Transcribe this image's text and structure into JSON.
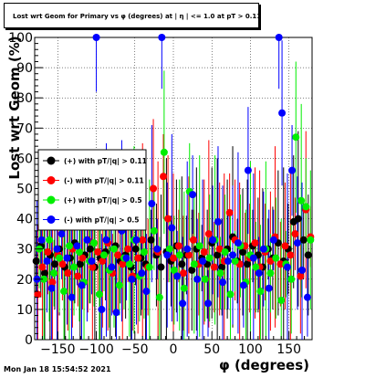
{
  "chart_data": {
    "type": "scatter",
    "title": "Lost wrt Geom for Primary vs φ (degrees) at | η | <= 1.0 at pT > 0.11",
    "xlabel": "φ (degrees)",
    "ylabel": "Lost wrt Geom (%)",
    "xlim": [
      -180,
      180
    ],
    "ylim": [
      0,
      100
    ],
    "xticks": [
      -150,
      -100,
      -50,
      0,
      50,
      100,
      150
    ],
    "yticks": [
      0,
      10,
      20,
      30,
      40,
      50,
      60,
      70,
      80,
      90,
      100
    ],
    "grid": true,
    "legend_position": "left-middle",
    "legend": [
      {
        "label": "(+) with pT/|q| > 0.11",
        "color": "#000000"
      },
      {
        "label": "(-) with pT/|q| > 0.11",
        "color": "#ff0000"
      },
      {
        "label": "(+) with pT/|q| > 0.5",
        "color": "#00ee00"
      },
      {
        "label": "(-) with pT/|q| > 0.5",
        "color": "#0000ff"
      }
    ],
    "series": [
      {
        "name": "(+) with pT/|q| > 0.11",
        "color": "#000000",
        "points": [
          [
            -178,
            26
          ],
          [
            -172,
            31
          ],
          [
            -167,
            22
          ],
          [
            -160,
            28
          ],
          [
            -154,
            25
          ],
          [
            -148,
            30
          ],
          [
            -141,
            24
          ],
          [
            -134,
            27
          ],
          [
            -128,
            32
          ],
          [
            -121,
            25
          ],
          [
            -115,
            28
          ],
          [
            -108,
            30
          ],
          [
            -102,
            24
          ],
          [
            -95,
            27
          ],
          [
            -88,
            29
          ],
          [
            -82,
            23
          ],
          [
            -75,
            31
          ],
          [
            -69,
            26
          ],
          [
            -62,
            28
          ],
          [
            -55,
            24
          ],
          [
            -49,
            30
          ],
          [
            -42,
            27
          ],
          [
            -36,
            25
          ],
          [
            -29,
            33
          ],
          [
            -22,
            28
          ],
          [
            -16,
            24
          ],
          [
            -9,
            29
          ],
          [
            -3,
            26
          ],
          [
            4,
            31
          ],
          [
            11,
            25
          ],
          [
            17,
            28
          ],
          [
            24,
            23
          ],
          [
            30,
            30
          ],
          [
            37,
            27
          ],
          [
            44,
            25
          ],
          [
            50,
            32
          ],
          [
            57,
            28
          ],
          [
            63,
            24
          ],
          [
            70,
            30
          ],
          [
            77,
            34
          ],
          [
            83,
            26
          ],
          [
            90,
            29
          ],
          [
            96,
            25
          ],
          [
            103,
            31
          ],
          [
            110,
            28
          ],
          [
            116,
            24
          ],
          [
            123,
            30
          ],
          [
            129,
            27
          ],
          [
            136,
            32
          ],
          [
            143,
            26
          ],
          [
            149,
            30
          ],
          [
            156,
            39
          ],
          [
            162,
            40
          ],
          [
            169,
            33
          ],
          [
            175,
            28
          ]
        ]
      },
      {
        "name": "(-) with pT/|q| > 0.11",
        "color": "#ff0000",
        "points": [
          [
            -176,
            15
          ],
          [
            -170,
            24
          ],
          [
            -163,
            29
          ],
          [
            -157,
            19
          ],
          [
            -150,
            28
          ],
          [
            -144,
            25
          ],
          [
            -137,
            22
          ],
          [
            -131,
            30
          ],
          [
            -124,
            21
          ],
          [
            -118,
            27
          ],
          [
            -111,
            33
          ],
          [
            -105,
            24
          ],
          [
            -98,
            29
          ],
          [
            -92,
            26
          ],
          [
            -85,
            32
          ],
          [
            -79,
            22
          ],
          [
            -72,
            28
          ],
          [
            -66,
            25
          ],
          [
            -59,
            30
          ],
          [
            -53,
            21
          ],
          [
            -46,
            27
          ],
          [
            -40,
            33
          ],
          [
            -33,
            24
          ],
          [
            -26,
            50
          ],
          [
            -20,
            29
          ],
          [
            -13,
            54
          ],
          [
            -7,
            40
          ],
          [
            0,
            27
          ],
          [
            7,
            31
          ],
          [
            13,
            22
          ],
          [
            20,
            28
          ],
          [
            26,
            33
          ],
          [
            33,
            25
          ],
          [
            40,
            29
          ],
          [
            46,
            35
          ],
          [
            53,
            24
          ],
          [
            60,
            30
          ],
          [
            66,
            26
          ],
          [
            73,
            42
          ],
          [
            80,
            33
          ],
          [
            86,
            25
          ],
          [
            93,
            31
          ],
          [
            99,
            27
          ],
          [
            106,
            32
          ],
          [
            112,
            24
          ],
          [
            119,
            29
          ],
          [
            126,
            26
          ],
          [
            132,
            34
          ],
          [
            139,
            25
          ],
          [
            145,
            31
          ],
          [
            152,
            28
          ],
          [
            158,
            35
          ],
          [
            165,
            21
          ],
          [
            172,
            43
          ],
          [
            178,
            34
          ]
        ]
      },
      {
        "name": "(+) with pT/|q| > 0.5",
        "color": "#00ee00",
        "points": [
          [
            -174,
            30
          ],
          [
            -168,
            20
          ],
          [
            -161,
            33
          ],
          [
            -155,
            22
          ],
          [
            -148,
            27
          ],
          [
            -142,
            16
          ],
          [
            -135,
            31
          ],
          [
            -129,
            24
          ],
          [
            -122,
            29
          ],
          [
            -116,
            19
          ],
          [
            -109,
            26
          ],
          [
            -103,
            32
          ],
          [
            -96,
            15
          ],
          [
            -90,
            28
          ],
          [
            -83,
            23
          ],
          [
            -77,
            30
          ],
          [
            -70,
            18
          ],
          [
            -64,
            27
          ],
          [
            -57,
            25
          ],
          [
            -51,
            33
          ],
          [
            -44,
            21
          ],
          [
            -38,
            29
          ],
          [
            -31,
            24
          ],
          [
            -25,
            36
          ],
          [
            -18,
            14
          ],
          [
            -12,
            62
          ],
          [
            -5,
            30
          ],
          [
            1,
            23
          ],
          [
            8,
            28
          ],
          [
            14,
            17
          ],
          [
            21,
            49
          ],
          [
            27,
            25
          ],
          [
            34,
            31
          ],
          [
            41,
            20
          ],
          [
            47,
            27
          ],
          [
            54,
            33
          ],
          [
            61,
            22
          ],
          [
            67,
            29
          ],
          [
            74,
            15
          ],
          [
            80,
            26
          ],
          [
            87,
            31
          ],
          [
            94,
            19
          ],
          [
            100,
            28
          ],
          [
            107,
            24
          ],
          [
            113,
            16
          ],
          [
            120,
            30
          ],
          [
            126,
            22
          ],
          [
            133,
            27
          ],
          [
            140,
            13
          ],
          [
            146,
            25
          ],
          [
            153,
            20
          ],
          [
            159,
            67
          ],
          [
            166,
            46
          ],
          [
            172,
            44
          ],
          [
            178,
            33
          ]
        ]
      },
      {
        "name": "(-) with pT/|q| > 0.5",
        "color": "#0000ff",
        "points": [
          [
            -177,
            20
          ],
          [
            -171,
            33
          ],
          [
            -164,
            26
          ],
          [
            -158,
            17
          ],
          [
            -151,
            30
          ],
          [
            -145,
            35
          ],
          [
            -138,
            27
          ],
          [
            -132,
            14
          ],
          [
            -125,
            31
          ],
          [
            -119,
            18
          ],
          [
            -112,
            33
          ],
          [
            -106,
            26
          ],
          [
            -100,
            100
          ],
          [
            -93,
            10
          ],
          [
            -87,
            33
          ],
          [
            -80,
            24
          ],
          [
            -74,
            9
          ],
          [
            -67,
            36
          ],
          [
            -61,
            27
          ],
          [
            -54,
            20
          ],
          [
            -48,
            33
          ],
          [
            -41,
            22
          ],
          [
            -35,
            16
          ],
          [
            -28,
            45
          ],
          [
            -21,
            30
          ],
          [
            -15,
            100
          ],
          [
            -8,
            28
          ],
          [
            -2,
            37
          ],
          [
            5,
            21
          ],
          [
            12,
            12
          ],
          [
            18,
            30
          ],
          [
            25,
            48
          ],
          [
            31,
            20
          ],
          [
            38,
            26
          ],
          [
            45,
            12
          ],
          [
            51,
            33
          ],
          [
            58,
            39
          ],
          [
            64,
            19
          ],
          [
            71,
            26
          ],
          [
            77,
            28
          ],
          [
            84,
            32
          ],
          [
            91,
            18
          ],
          [
            97,
            56
          ],
          [
            104,
            27
          ],
          [
            111,
            22
          ],
          [
            117,
            30
          ],
          [
            124,
            17
          ],
          [
            130,
            33
          ],
          [
            137,
            100
          ],
          [
            141,
            75
          ],
          [
            148,
            24
          ],
          [
            154,
            56
          ],
          [
            161,
            32
          ],
          [
            167,
            23
          ],
          [
            174,
            14
          ]
        ]
      }
    ]
  },
  "timestamp": "Mon Jan 18 15:54:52 2021"
}
